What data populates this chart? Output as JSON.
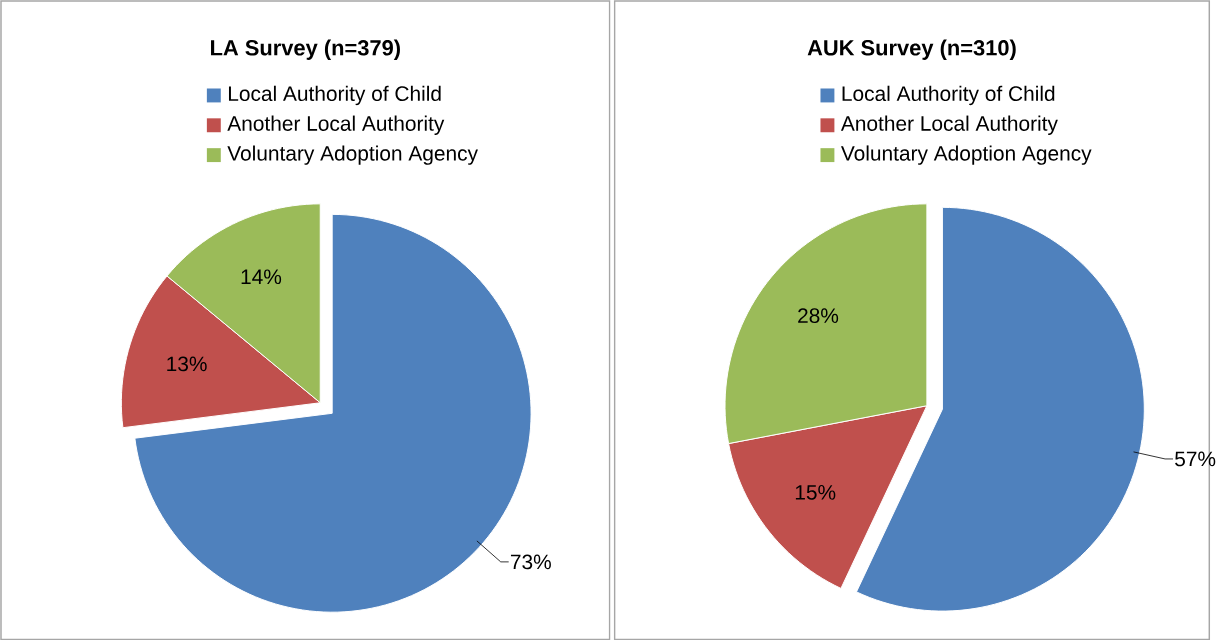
{
  "chart_data": [
    {
      "type": "pie",
      "title": "LA Survey (n=379)",
      "categories": [
        "Local Authority of Child",
        "Another Local Authority",
        "Voluntary Adoption Agency"
      ],
      "values": [
        73,
        13,
        14
      ],
      "colors": [
        "#4f81bd",
        "#c0504d",
        "#9bbb59"
      ],
      "value_labels": [
        "73%",
        "13%",
        "14%"
      ],
      "legend": "top"
    },
    {
      "type": "pie",
      "title": "AUK Survey (n=310)",
      "categories": [
        "Local Authority of Child",
        "Another Local Authority",
        "Voluntary Adoption Agency"
      ],
      "values": [
        57,
        15,
        28
      ],
      "colors": [
        "#4f81bd",
        "#c0504d",
        "#9bbb59"
      ],
      "value_labels": [
        "57%",
        "15%",
        "28%"
      ],
      "legend": "top"
    }
  ]
}
